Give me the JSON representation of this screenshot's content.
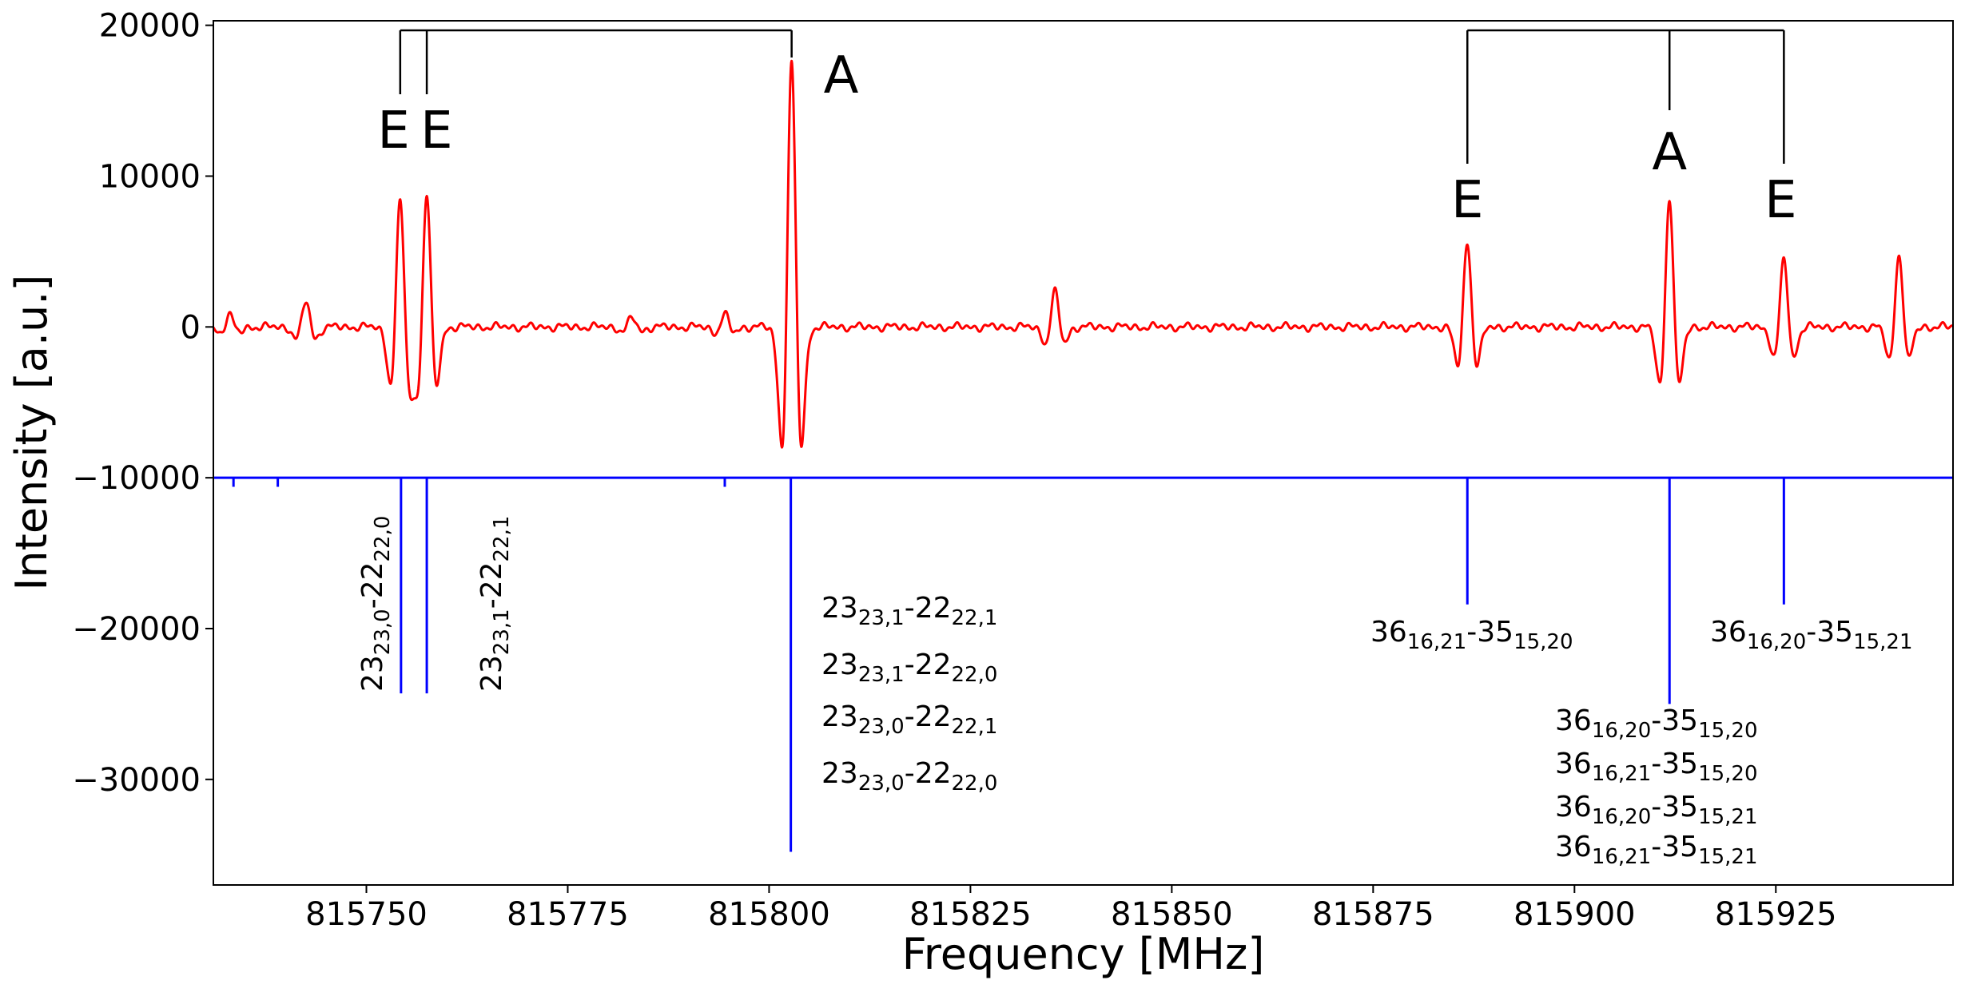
{
  "chart_data": {
    "type": "line",
    "xlabel": "Frequency [MHz]",
    "ylabel": "Intensity [a.u.]",
    "xlim": [
      815731,
      815947
    ],
    "ylim": [
      -37000,
      20300
    ],
    "x_ticks": [
      815750,
      815775,
      815800,
      815825,
      815850,
      815875,
      815900,
      815925
    ],
    "y_ticks": [
      20000,
      10000,
      0,
      -10000,
      -20000,
      -30000
    ],
    "x_tick_labels": [
      "815750",
      "815775",
      "815800",
      "815825",
      "815850",
      "815875",
      "815900",
      "815925"
    ],
    "y_tick_labels": [
      "20000",
      "10000",
      "0",
      "−10000",
      "−20000",
      "−30000"
    ],
    "grid": false,
    "series": [
      {
        "type": "line",
        "color": "#ff0000",
        "baseline": 0,
        "features": [
          {
            "x": 815733.0,
            "peak": 800,
            "width": 0.7
          },
          {
            "x": 815742.5,
            "peak": 1700,
            "width": 0.7
          },
          {
            "x": 815754.2,
            "peak": 8300,
            "width": 0.7
          },
          {
            "x": 815757.5,
            "peak": 8600,
            "width": 0.7
          },
          {
            "x": 815783.0,
            "peak": 600,
            "width": 0.7
          },
          {
            "x": 815794.5,
            "peak": 800,
            "width": 0.7
          },
          {
            "x": 815802.8,
            "peak": 17500,
            "width": 0.7
          },
          {
            "x": 815835.5,
            "peak": 2300,
            "width": 0.7
          },
          {
            "x": 815886.7,
            "peak": 5600,
            "width": 0.7
          },
          {
            "x": 815911.8,
            "peak": 8500,
            "width": 0.7
          },
          {
            "x": 815926.0,
            "peak": 4500,
            "width": 0.7
          },
          {
            "x": 815940.3,
            "peak": 4800,
            "width": 0.7
          }
        ]
      },
      {
        "type": "stick",
        "color": "#0000ff",
        "baseline": -10000,
        "x": [
          815733.5,
          815739.0,
          815754.3,
          815757.5,
          815794.5,
          815802.7,
          815886.7,
          815911.8,
          815926.0
        ],
        "y": [
          -10600,
          -10600,
          -24300,
          -24300,
          -10600,
          -34800,
          -18400,
          -25000,
          -18400
        ]
      }
    ],
    "assignment_groups": [
      {
        "labels": [
          "E",
          "E",
          "A"
        ],
        "x": [
          815754.2,
          815757.5,
          815802.8
        ]
      },
      {
        "labels": [
          "E",
          "A",
          "E"
        ],
        "x": [
          815886.7,
          815911.8,
          815926.0
        ]
      }
    ],
    "transitions": [
      {
        "parts": [
          [
            "23",
            ""
          ],
          [
            "23,0",
            "sub"
          ],
          [
            "-22",
            ""
          ],
          [
            "22,0",
            "sub"
          ]
        ]
      },
      {
        "parts": [
          [
            "23",
            ""
          ],
          [
            "23,1",
            "sub"
          ],
          [
            "-22",
            ""
          ],
          [
            "22,1",
            "sub"
          ]
        ]
      },
      {
        "parts": [
          [
            "23",
            ""
          ],
          [
            "23,1",
            "sub"
          ],
          [
            "-22",
            ""
          ],
          [
            "22,1",
            "sub"
          ]
        ]
      },
      {
        "parts": [
          [
            "23",
            ""
          ],
          [
            "23,1",
            "sub"
          ],
          [
            "-22",
            ""
          ],
          [
            "22,0",
            "sub"
          ]
        ]
      },
      {
        "parts": [
          [
            "23",
            ""
          ],
          [
            "23,0",
            "sub"
          ],
          [
            "-22",
            ""
          ],
          [
            "22,1",
            "sub"
          ]
        ]
      },
      {
        "parts": [
          [
            "23",
            ""
          ],
          [
            "23,0",
            "sub"
          ],
          [
            "-22",
            ""
          ],
          [
            "22,0",
            "sub"
          ]
        ]
      },
      {
        "parts": [
          [
            "36",
            ""
          ],
          [
            "16,21",
            "sub"
          ],
          [
            "-35",
            ""
          ],
          [
            "15,20",
            "sub"
          ]
        ]
      },
      {
        "parts": [
          [
            "36",
            ""
          ],
          [
            "16,20",
            "sub"
          ],
          [
            "-35",
            ""
          ],
          [
            "15,21",
            "sub"
          ]
        ]
      },
      {
        "parts": [
          [
            "36",
            ""
          ],
          [
            "16,20",
            "sub"
          ],
          [
            "-35",
            ""
          ],
          [
            "15,20",
            "sub"
          ]
        ]
      },
      {
        "parts": [
          [
            "36",
            ""
          ],
          [
            "16,21",
            "sub"
          ],
          [
            "-35",
            ""
          ],
          [
            "15,20",
            "sub"
          ]
        ]
      },
      {
        "parts": [
          [
            "36",
            ""
          ],
          [
            "16,20",
            "sub"
          ],
          [
            "-35",
            ""
          ],
          [
            "15,21",
            "sub"
          ]
        ]
      },
      {
        "parts": [
          [
            "36",
            ""
          ],
          [
            "16,21",
            "sub"
          ],
          [
            "-35",
            ""
          ],
          [
            "15,21",
            "sub"
          ]
        ]
      }
    ]
  }
}
